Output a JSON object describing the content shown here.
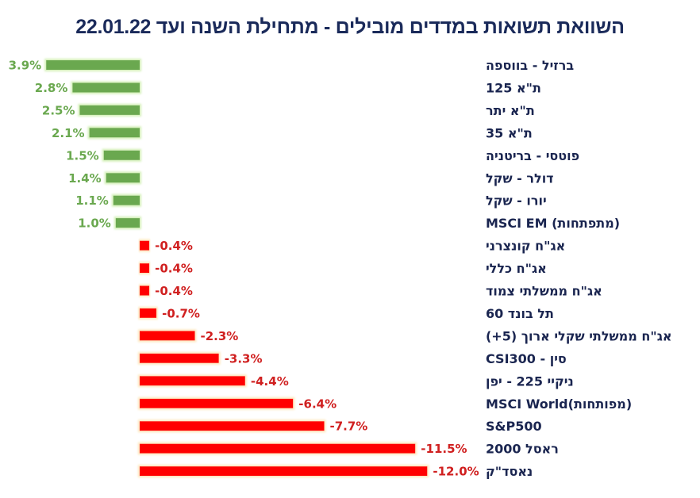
{
  "chart_data": {
    "type": "bar",
    "orientation": "horizontal",
    "title": "השוואת תשואות במדדים מובילים - מתחילת השנה ועד 22.01.22",
    "xlabel": "",
    "ylabel": "",
    "unit": "%",
    "grid": false,
    "legend": "none",
    "categories": [
      "ברזיל - בווספה",
      "ת\"א 125",
      "ת\"א יתר",
      "ת\"א 35",
      "פוטסי - בריטניה",
      "דולר - שקל",
      "יורו - שקל",
      "MSCI EM (מתפתחות)",
      "אג\"ח קונצרני",
      "אג\"ח כללי",
      "אג\"ח ממשלתי צמוד",
      "תל בונד 60",
      "אג\"ח ממשלתי שקלי ארוך (5+)",
      "סין - CSI300",
      "ניקיי 225 - יפן",
      "MSCI World(מפותחות)",
      "S&P500",
      "ראסל 2000",
      "נאסד\"ק"
    ],
    "values": [
      3.9,
      2.8,
      2.5,
      2.1,
      1.5,
      1.4,
      1.1,
      1.0,
      -0.4,
      -0.4,
      -0.4,
      -0.7,
      -2.3,
      -3.3,
      -4.4,
      -6.4,
      -7.7,
      -11.5,
      -12.0
    ],
    "value_labels": [
      "3.9%",
      "2.8%",
      "2.5%",
      "2.1%",
      "1.5%",
      "1.4%",
      "1.1%",
      "1.0%",
      "-0.4%",
      "-0.4%",
      "-0.4%",
      "-0.7%",
      "-2.3%",
      "-3.3%",
      "-4.4%",
      "-6.4%",
      "-7.7%",
      "-11.5%",
      "-12.0%"
    ],
    "colors": {
      "positive_bar": "#6aa84f",
      "positive_label": "#6aa84f",
      "positive_glow": "#d4f0b8",
      "negative_bar": "#ff0000",
      "negative_label": "#d02020",
      "negative_glow": "#fde8c0",
      "category_text": "#1a2550",
      "title_text": "#1a2a5a"
    }
  }
}
